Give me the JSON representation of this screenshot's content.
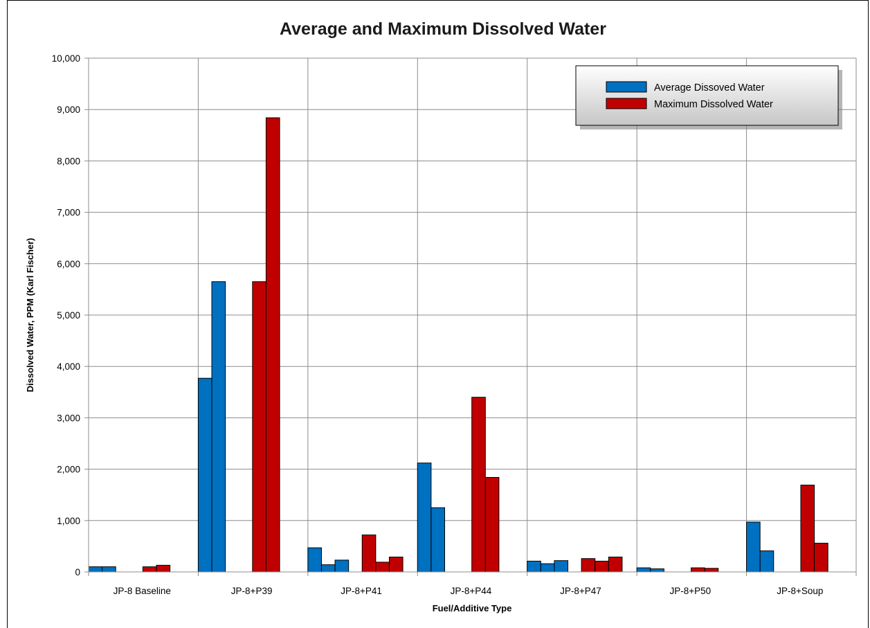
{
  "chart_data": {
    "type": "bar",
    "title": "Average and Maximum Dissolved Water",
    "xlabel": "Fuel/Additive Type",
    "ylabel": "Dissolved Water, PPM (Karl Fischer)",
    "ylim": [
      0,
      10000
    ],
    "yticks": [
      "0",
      "1,000",
      "2,000",
      "3,000",
      "4,000",
      "5,000",
      "6,000",
      "7,000",
      "8,000",
      "9,000",
      "10,000"
    ],
    "grid": true,
    "legend_position": "top-right",
    "categories": [
      "JP-8 Baseline",
      "JP-8+P39",
      "JP-8+P41",
      "JP-8+P44",
      "JP-8+P47",
      "JP-8+P50",
      "JP-8+Soup"
    ],
    "series": [
      {
        "name": "Average Dissoved Water",
        "color": "#0070C0",
        "values": [
          [
            100,
            100,
            null
          ],
          [
            3770,
            5650,
            null
          ],
          [
            470,
            140,
            230
          ],
          [
            2120,
            1250,
            null
          ],
          [
            210,
            160,
            220
          ],
          [
            80,
            60,
            null
          ],
          [
            970,
            410,
            null
          ]
        ]
      },
      {
        "name": "Maximum Dissolved Water",
        "color": "#C00000",
        "values": [
          [
            100,
            130,
            null
          ],
          [
            5650,
            8840,
            null
          ],
          [
            720,
            190,
            290
          ],
          [
            3400,
            1840,
            null
          ],
          [
            260,
            210,
            290
          ],
          [
            80,
            70,
            null
          ],
          [
            1690,
            560,
            null
          ]
        ]
      }
    ]
  }
}
